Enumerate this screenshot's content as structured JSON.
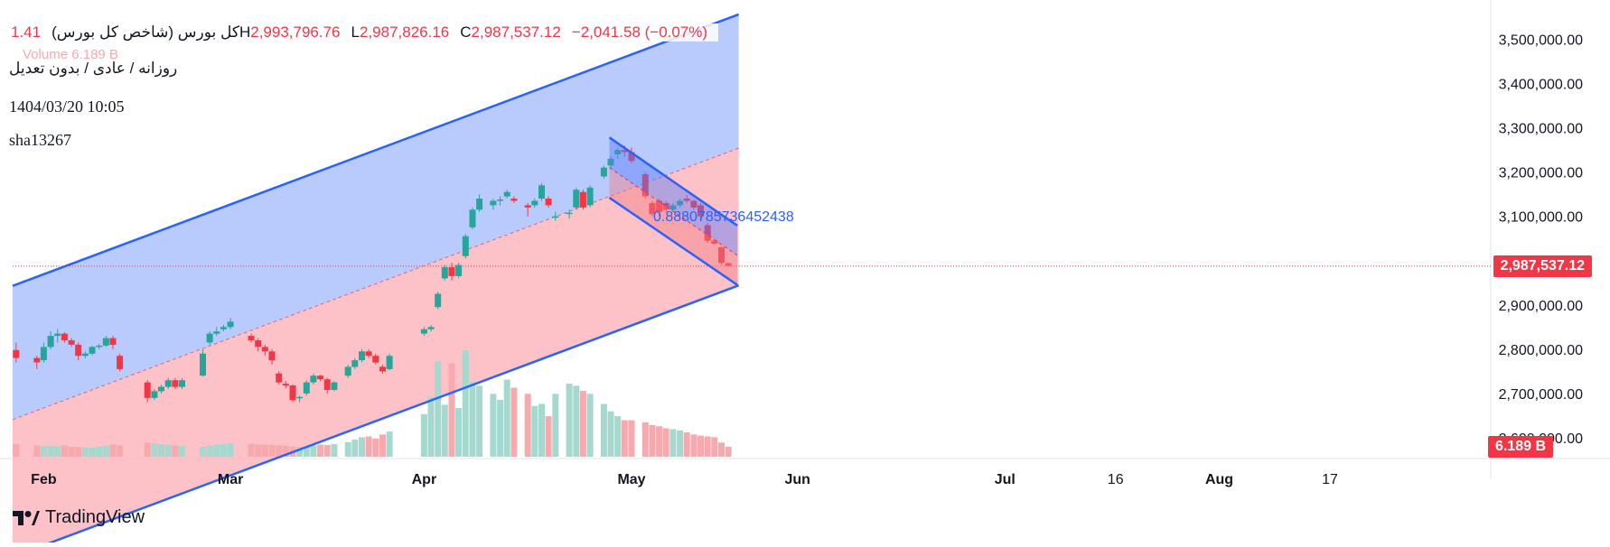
{
  "header": {
    "symbol_title": "کل بورس (شاخص کل بورس)",
    "open_partial": "1.41",
    "volume_label": "Volume",
    "volume_value": "6.189 B",
    "subtitle": "روزانه / عادی / بدون تعدیل",
    "datetime": "1404/03/20 10:05",
    "author": "sha13267"
  },
  "ohlc": {
    "h_label": "H",
    "h_value": "2,993,796.76",
    "l_label": "L",
    "l_value": "2,987,826.16",
    "c_label": "C",
    "c_value": "2,987,537.12",
    "change": "−2,041.58 (−0.07%)"
  },
  "price_tag": "2,987,537.12",
  "volume_tag": "6.189 B",
  "annotation": "0.8880785736452438",
  "brand": "TradingView",
  "colors": {
    "up": "#26a69a",
    "down": "#f23645",
    "channel_line": "#2962ff",
    "channel_upper_fill": "#a8bdfc",
    "channel_lower_fill": "#fbb3b9",
    "vol_up": "#a5d8cf",
    "vol_down": "#f7a9ae"
  },
  "chart_data": {
    "type": "candlestick",
    "y_axis": {
      "ticks": [
        2600000,
        2700000,
        2800000,
        2900000,
        3000000,
        3100000,
        3200000,
        3300000,
        3400000,
        3500000
      ],
      "tick_labels": [
        "2,600,000.00",
        "2,700,000.00",
        "2,800,000.00",
        "2,900,000.00",
        "3,000,000.00",
        "3,100,000.00",
        "3,200,000.00",
        "3,300,000.00",
        "3,400,000.00",
        "3,500,000.00"
      ],
      "ylim": [
        2555000,
        3560000
      ]
    },
    "x_axis": {
      "labels": [
        "Feb",
        "Mar",
        "Apr",
        "May",
        "Jun",
        "Jul",
        "16",
        "Aug",
        "17"
      ],
      "label_index": [
        4,
        31,
        59,
        89,
        113,
        143,
        159,
        174,
        190
      ],
      "xlim": [
        -0.5,
        213
      ]
    },
    "candles": [
      [
        2798000,
        2815000,
        2770000,
        2780000
      ],
      [
        2780000,
        2785000,
        2755000,
        2770000
      ],
      [
        2775000,
        2815000,
        2770000,
        2805000
      ],
      [
        2805000,
        2840000,
        2800000,
        2830000
      ],
      [
        2830000,
        2845000,
        2815000,
        2835000
      ],
      [
        2835000,
        2838000,
        2815000,
        2820000
      ],
      [
        2820000,
        2825000,
        2805000,
        2810000
      ],
      [
        2810000,
        2815000,
        2775000,
        2785000
      ],
      [
        2785000,
        2795000,
        2780000,
        2790000
      ],
      [
        2790000,
        2808000,
        2786000,
        2805000
      ],
      [
        2805000,
        2812000,
        2800000,
        2808000
      ],
      [
        2808000,
        2830000,
        2805000,
        2825000
      ],
      [
        2825000,
        2830000,
        2800000,
        2810000
      ],
      [
        2785000,
        2790000,
        2750000,
        2755000
      ],
      [
        2725000,
        2730000,
        2680000,
        2690000
      ],
      [
        2690000,
        2710000,
        2685000,
        2705000
      ],
      [
        2705000,
        2720000,
        2700000,
        2715000
      ],
      [
        2715000,
        2735000,
        2710000,
        2730000
      ],
      [
        2730000,
        2735000,
        2710000,
        2715000
      ],
      [
        2715000,
        2735000,
        2710000,
        2730000
      ],
      [
        2740000,
        2800000,
        2738000,
        2790000
      ],
      [
        2815000,
        2840000,
        2810000,
        2835000
      ],
      [
        2835000,
        2850000,
        2830000,
        2840000
      ],
      [
        2845000,
        2855000,
        2840000,
        2850000
      ],
      [
        2850000,
        2870000,
        2845000,
        2862000
      ],
      [
        2830000,
        2835000,
        2815000,
        2820000
      ],
      [
        2820000,
        2825000,
        2795000,
        2805000
      ],
      [
        2805000,
        2810000,
        2785000,
        2795000
      ],
      [
        2795000,
        2800000,
        2765000,
        2775000
      ],
      [
        2745000,
        2750000,
        2720000,
        2725000
      ],
      [
        2722000,
        2728000,
        2712000,
        2718000
      ],
      [
        2718000,
        2720000,
        2680000,
        2685000
      ],
      [
        2690000,
        2695000,
        2680000,
        2692000
      ],
      [
        2700000,
        2730000,
        2695000,
        2725000
      ],
      [
        2725000,
        2745000,
        2720000,
        2740000
      ],
      [
        2740000,
        2742000,
        2728000,
        2732000
      ],
      [
        2732000,
        2735000,
        2700000,
        2708000
      ],
      [
        2708000,
        2728000,
        2705000,
        2725000
      ],
      [
        2740000,
        2765000,
        2735000,
        2760000
      ],
      [
        2760000,
        2780000,
        2755000,
        2775000
      ],
      [
        2775000,
        2800000,
        2770000,
        2795000
      ],
      [
        2795000,
        2800000,
        2780000,
        2785000
      ],
      [
        2785000,
        2790000,
        2765000,
        2770000
      ],
      [
        2760000,
        2765000,
        2745000,
        2750000
      ],
      [
        2755000,
        2790000,
        2752000,
        2785000
      ],
      [
        2835000,
        2850000,
        2830000,
        2845000
      ],
      [
        2845000,
        2855000,
        2840000,
        2850000
      ],
      [
        2895000,
        2930000,
        2890000,
        2925000
      ],
      [
        2960000,
        2990000,
        2955000,
        2985000
      ],
      [
        2985000,
        2995000,
        2955000,
        2965000
      ],
      [
        2965000,
        2995000,
        2960000,
        2990000
      ],
      [
        3010000,
        3060000,
        3005000,
        3055000
      ],
      [
        3075000,
        3120000,
        3070000,
        3115000
      ],
      [
        3115000,
        3150000,
        3110000,
        3140000
      ],
      [
        3125000,
        3140000,
        3115000,
        3135000
      ],
      [
        3135000,
        3145000,
        3125000,
        3138000
      ],
      [
        3145000,
        3160000,
        3140000,
        3155000
      ],
      [
        3140000,
        3145000,
        3130000,
        3135000
      ],
      [
        3125000,
        3130000,
        3100000,
        3120000
      ],
      [
        3125000,
        3140000,
        3120000,
        3135000
      ],
      [
        3140000,
        3175000,
        3135000,
        3170000
      ],
      [
        3140000,
        3145000,
        3120000,
        3125000
      ],
      [
        3098000,
        3110000,
        3090000,
        3100000
      ],
      [
        3105000,
        3115000,
        3095000,
        3108000
      ],
      [
        3120000,
        3165000,
        3115000,
        3160000
      ],
      [
        3155000,
        3160000,
        3115000,
        3120000
      ],
      [
        3125000,
        3170000,
        3120000,
        3165000
      ],
      [
        3190000,
        3215000,
        3185000,
        3210000
      ],
      [
        3215000,
        3235000,
        3210000,
        3230000
      ],
      [
        3240000,
        3255000,
        3230000,
        3250000
      ],
      [
        3250000,
        3260000,
        3235000,
        3245000
      ],
      [
        3245000,
        3255000,
        3220000,
        3225000
      ],
      [
        3195000,
        3200000,
        3140000,
        3145000
      ],
      [
        3130000,
        3135000,
        3100000,
        3105000
      ],
      [
        3135000,
        3140000,
        3100000,
        3110000
      ],
      [
        3130000,
        3135000,
        3110000,
        3115000
      ],
      [
        3115000,
        3130000,
        3110000,
        3125000
      ],
      [
        3125000,
        3140000,
        3120000,
        3135000
      ],
      [
        3140000,
        3148000,
        3130000,
        3135000
      ],
      [
        3135000,
        3138000,
        3115000,
        3120000
      ],
      [
        3125000,
        3130000,
        3090000,
        3100000
      ],
      [
        3080000,
        3085000,
        3040000,
        3045000
      ],
      [
        3045000,
        3048000,
        3035000,
        3038000
      ],
      [
        3030000,
        3032000,
        2990000,
        2995000
      ],
      [
        2994000,
        2996000,
        2987000,
        2988000
      ]
    ],
    "candle_index": [
      0,
      3,
      4,
      5,
      6,
      7,
      8,
      9,
      10,
      11,
      12,
      13,
      14,
      15,
      19,
      20,
      21,
      22,
      23,
      24,
      27,
      28,
      29,
      30,
      31,
      34,
      35,
      36,
      37,
      38,
      39,
      40,
      41,
      42,
      43,
      44,
      45,
      46,
      48,
      49,
      50,
      51,
      52,
      53,
      54,
      59,
      60,
      61,
      62,
      63,
      64,
      65,
      66,
      67,
      69,
      70,
      71,
      72,
      74,
      75,
      76,
      77,
      78,
      80,
      81,
      82,
      83,
      85,
      86,
      87,
      88,
      89,
      91,
      92,
      93,
      94,
      95,
      96,
      97,
      98,
      99,
      100,
      101,
      102,
      103
    ],
    "volume": {
      "values_relative": [
        0.31,
        0.28,
        0.26,
        0.27,
        0.26,
        0.28,
        0.25,
        0.24,
        0.23,
        0.22,
        0.25,
        0.27,
        0.3,
        0.28,
        0.35,
        0.33,
        0.31,
        0.3,
        0.28,
        0.26,
        0.25,
        0.28,
        0.3,
        0.31,
        0.33,
        0.32,
        0.3,
        0.3,
        0.29,
        0.28,
        0.27,
        0.25,
        0.24,
        0.25,
        0.28,
        0.3,
        0.29,
        0.31,
        0.36,
        0.42,
        0.48,
        0.5,
        0.45,
        0.55,
        0.62,
        1.05,
        1.48,
        2.35,
        1.28,
        2.3,
        1.2,
        2.62,
        1.85,
        1.75,
        1.55,
        1.4,
        1.9,
        1.7,
        1.55,
        1.25,
        1.3,
        1.0,
        1.55,
        1.8,
        1.75,
        1.62,
        1.55,
        1.3,
        1.12,
        1.0,
        0.9,
        0.9,
        0.85,
        0.78,
        0.75,
        0.7,
        0.68,
        0.65,
        0.6,
        0.55,
        0.52,
        0.5,
        0.48,
        0.35,
        0.25
      ],
      "label": "Volume",
      "last": "6.189 B"
    },
    "regression_channel": {
      "start_index": -0.5,
      "end_index": 104.5,
      "center_start": 2641000,
      "center_end": 3254000,
      "upper_offset": 302000,
      "lower_offset": 310000
    },
    "down_channel": {
      "start_index": 85.8,
      "end_index": 104.3,
      "upper_start": 3278000,
      "upper_end": 3079000,
      "mid_start": 3210000,
      "mid_end": 3012000,
      "lower_start": 3142000,
      "lower_end": 2945000
    },
    "last_price": 2987537.12
  }
}
